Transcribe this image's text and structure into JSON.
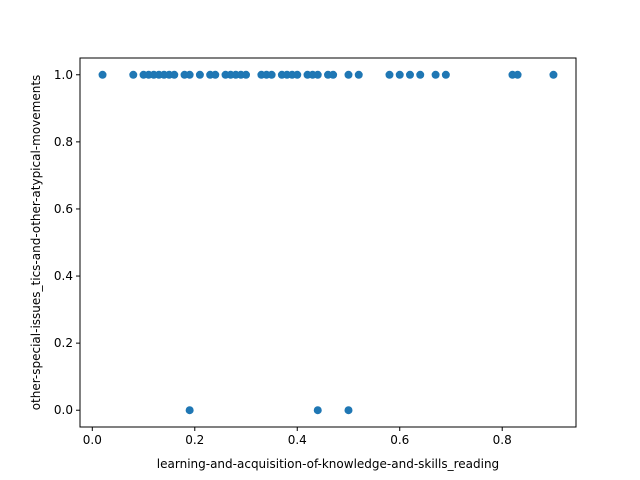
{
  "chart_data": {
    "type": "scatter",
    "title": "",
    "xlabel": "learning-and-acquisition-of-knowledge-and-skills_reading",
    "ylabel": "other-special-issues_tics-and-other-atypical-movements",
    "xlim": [
      -0.024,
      0.944
    ],
    "ylim": [
      -0.05,
      1.05
    ],
    "x_ticks": [
      0.0,
      0.2,
      0.4,
      0.6,
      0.8
    ],
    "x_tick_labels": [
      "0.0",
      "0.2",
      "0.4",
      "0.6",
      "0.8"
    ],
    "y_ticks": [
      0.0,
      0.2,
      0.4,
      0.6,
      0.8,
      1.0
    ],
    "y_tick_labels": [
      "0.0",
      "0.2",
      "0.4",
      "0.6",
      "0.8",
      "1.0"
    ],
    "grid": false,
    "legend": "none",
    "marker_color": "#1f77b4",
    "points": [
      {
        "x": 0.02,
        "y": 1
      },
      {
        "x": 0.08,
        "y": 1
      },
      {
        "x": 0.1,
        "y": 1
      },
      {
        "x": 0.11,
        "y": 1
      },
      {
        "x": 0.12,
        "y": 1
      },
      {
        "x": 0.13,
        "y": 1
      },
      {
        "x": 0.14,
        "y": 1
      },
      {
        "x": 0.15,
        "y": 1
      },
      {
        "x": 0.16,
        "y": 1
      },
      {
        "x": 0.18,
        "y": 1
      },
      {
        "x": 0.19,
        "y": 1
      },
      {
        "x": 0.21,
        "y": 1
      },
      {
        "x": 0.23,
        "y": 1
      },
      {
        "x": 0.24,
        "y": 1
      },
      {
        "x": 0.26,
        "y": 1
      },
      {
        "x": 0.27,
        "y": 1
      },
      {
        "x": 0.28,
        "y": 1
      },
      {
        "x": 0.29,
        "y": 1
      },
      {
        "x": 0.3,
        "y": 1
      },
      {
        "x": 0.33,
        "y": 1
      },
      {
        "x": 0.34,
        "y": 1
      },
      {
        "x": 0.35,
        "y": 1
      },
      {
        "x": 0.37,
        "y": 1
      },
      {
        "x": 0.38,
        "y": 1
      },
      {
        "x": 0.39,
        "y": 1
      },
      {
        "x": 0.4,
        "y": 1
      },
      {
        "x": 0.42,
        "y": 1
      },
      {
        "x": 0.43,
        "y": 1
      },
      {
        "x": 0.44,
        "y": 1
      },
      {
        "x": 0.46,
        "y": 1
      },
      {
        "x": 0.47,
        "y": 1
      },
      {
        "x": 0.5,
        "y": 1
      },
      {
        "x": 0.52,
        "y": 1
      },
      {
        "x": 0.58,
        "y": 1
      },
      {
        "x": 0.6,
        "y": 1
      },
      {
        "x": 0.62,
        "y": 1
      },
      {
        "x": 0.64,
        "y": 1
      },
      {
        "x": 0.67,
        "y": 1
      },
      {
        "x": 0.69,
        "y": 1
      },
      {
        "x": 0.82,
        "y": 1
      },
      {
        "x": 0.83,
        "y": 1
      },
      {
        "x": 0.9,
        "y": 1
      },
      {
        "x": 0.19,
        "y": 0
      },
      {
        "x": 0.44,
        "y": 0
      },
      {
        "x": 0.5,
        "y": 0
      }
    ]
  }
}
